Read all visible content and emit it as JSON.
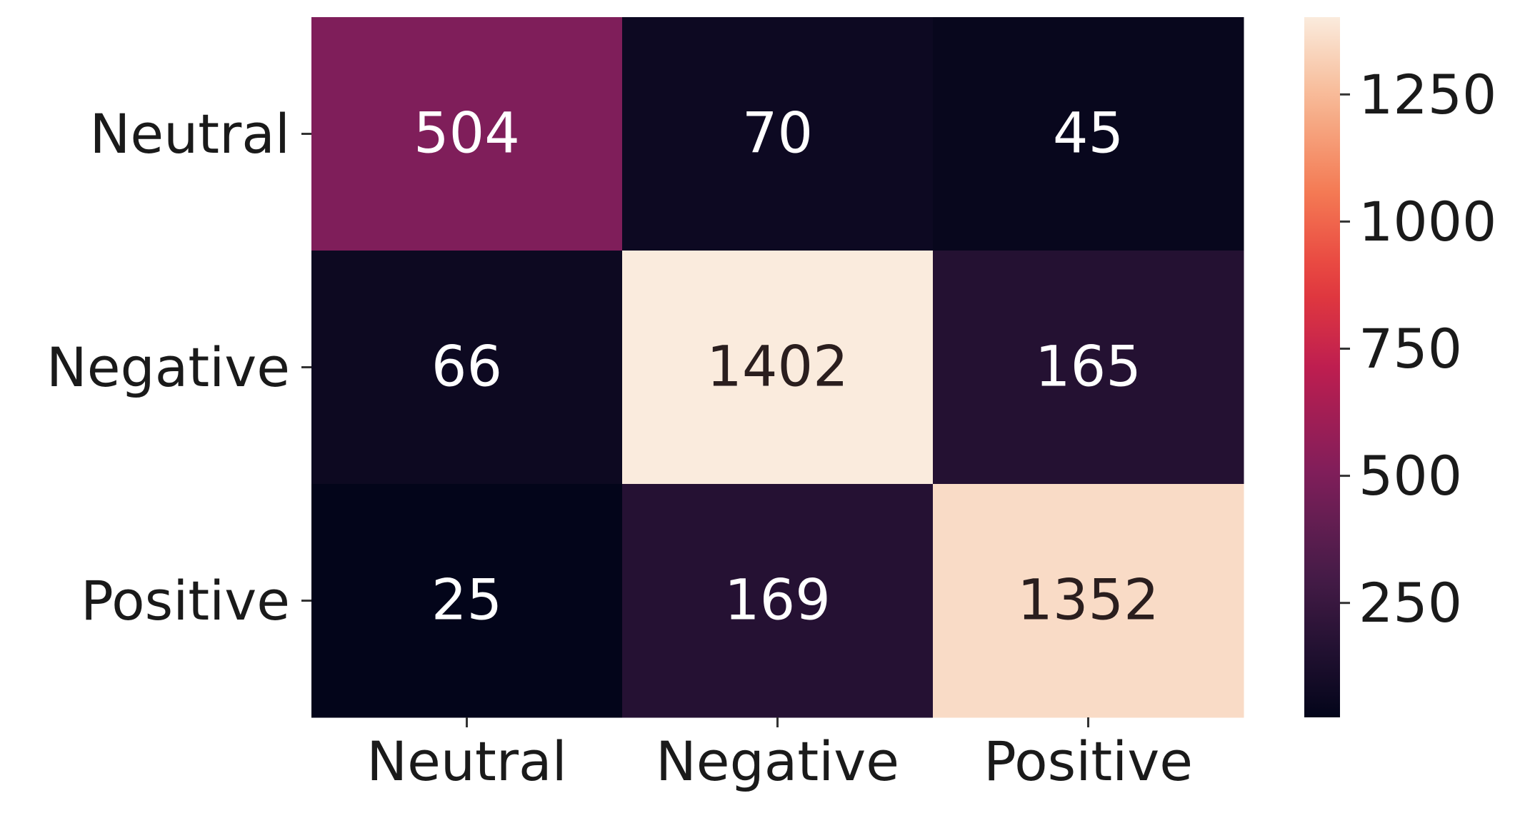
{
  "chart_data": {
    "type": "heatmap",
    "title": "",
    "xlabel": "",
    "ylabel": "",
    "x_categories": [
      "Neutral",
      "Negative",
      "Positive"
    ],
    "y_categories": [
      "Neutral",
      "Negative",
      "Positive"
    ],
    "values": [
      [
        504,
        70,
        45
      ],
      [
        66,
        1402,
        165
      ],
      [
        25,
        169,
        1352
      ]
    ],
    "colormap": "rocket",
    "colorbar": {
      "range": [
        25,
        1402
      ],
      "ticks": [
        250,
        500,
        750,
        1000,
        1250
      ]
    }
  }
}
